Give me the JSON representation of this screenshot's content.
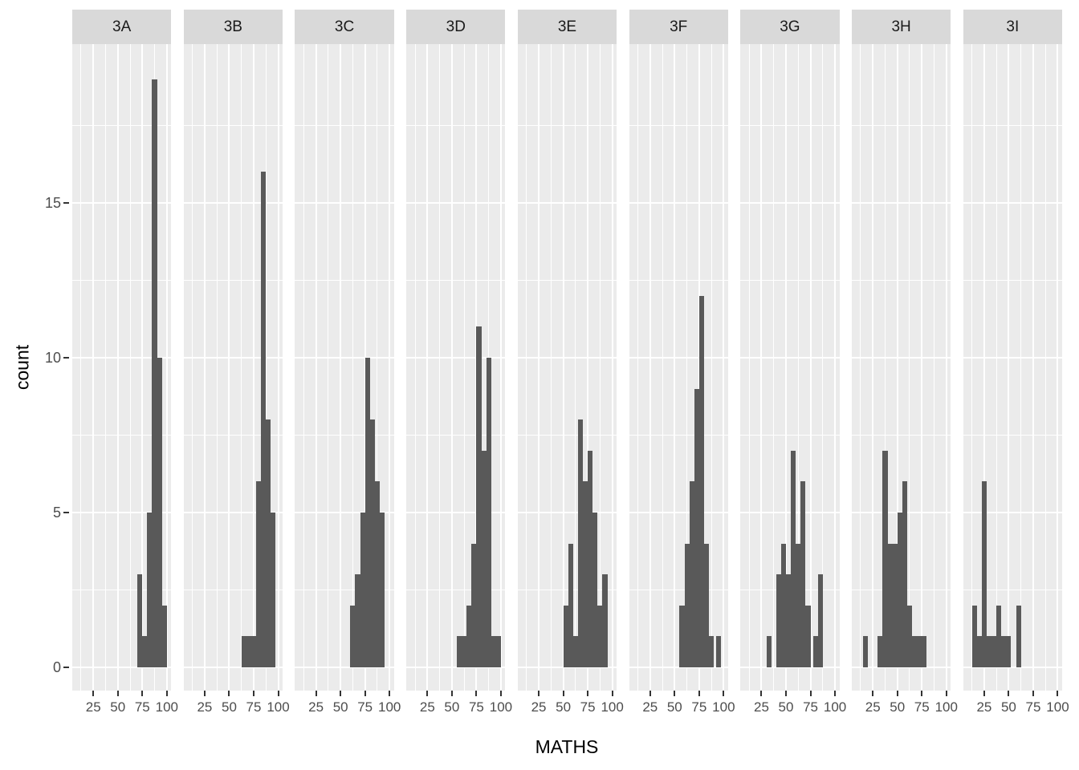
{
  "chart_data": {
    "type": "bar",
    "subtype": "faceted-histogram",
    "title": "",
    "xlabel": "MATHS",
    "ylabel": "count",
    "x_ticks": [
      25,
      50,
      75,
      100
    ],
    "y_ticks": [
      0,
      5,
      10,
      15
    ],
    "xlim": [
      3.5,
      104.5
    ],
    "ylim": [
      -1,
      20
    ],
    "binwidth": 5,
    "grid": "on",
    "legend": "none",
    "colors": {
      "bar_fill": "#595959",
      "panel_background": "#ebebeb",
      "strip_background": "#d9d9d9",
      "gridline": "#ffffff",
      "axis_text": "#4d4d4d",
      "axis_title": "#000000",
      "tick_mark": "#333333"
    },
    "facets": [
      {
        "label": "3A",
        "bins": [
          [
            70,
            75,
            3
          ],
          [
            75,
            80,
            1
          ],
          [
            80,
            85,
            5
          ],
          [
            85,
            90,
            19
          ],
          [
            90,
            95,
            10
          ],
          [
            95,
            100,
            2
          ]
        ]
      },
      {
        "label": "3B",
        "bins": [
          [
            62.5,
            67.5,
            1
          ],
          [
            67.5,
            72.5,
            1
          ],
          [
            72.5,
            77.5,
            1
          ],
          [
            77.5,
            82.5,
            6
          ],
          [
            82.5,
            87.5,
            16
          ],
          [
            87.5,
            92.5,
            8
          ],
          [
            92.5,
            97.5,
            5
          ]
        ]
      },
      {
        "label": "3C",
        "bins": [
          [
            60,
            65,
            2
          ],
          [
            65,
            70,
            3
          ],
          [
            70,
            75,
            5
          ],
          [
            75,
            80,
            10
          ],
          [
            80,
            85,
            8
          ],
          [
            85,
            90,
            6
          ],
          [
            90,
            95,
            5
          ]
        ]
      },
      {
        "label": "3D",
        "bins": [
          [
            55,
            60,
            1
          ],
          [
            60,
            65,
            1
          ],
          [
            65,
            70,
            2
          ],
          [
            70,
            75,
            4
          ],
          [
            75,
            80,
            11
          ],
          [
            80,
            85,
            7
          ],
          [
            85,
            90,
            10
          ],
          [
            90,
            95,
            1
          ],
          [
            95,
            100,
            1
          ]
        ]
      },
      {
        "label": "3E",
        "bins": [
          [
            50,
            55,
            2
          ],
          [
            55,
            60,
            4
          ],
          [
            60,
            65,
            1
          ],
          [
            65,
            70,
            8
          ],
          [
            70,
            75,
            6
          ],
          [
            75,
            80,
            7
          ],
          [
            80,
            85,
            5
          ],
          [
            85,
            90,
            2
          ],
          [
            90,
            95,
            3
          ]
        ]
      },
      {
        "label": "3F",
        "bins": [
          [
            55,
            60,
            2
          ],
          [
            60,
            65,
            4
          ],
          [
            65,
            70,
            6
          ],
          [
            70,
            75,
            9
          ],
          [
            75,
            80,
            12
          ],
          [
            80,
            85,
            4
          ],
          [
            85,
            90,
            1
          ],
          [
            92.5,
            97.5,
            1
          ]
        ]
      },
      {
        "label": "3G",
        "bins": [
          [
            30,
            35,
            1
          ],
          [
            40,
            45,
            3
          ],
          [
            45,
            50,
            4
          ],
          [
            50,
            55,
            3
          ],
          [
            55,
            60,
            7
          ],
          [
            60,
            65,
            4
          ],
          [
            65,
            70,
            6
          ],
          [
            70,
            75,
            2
          ],
          [
            77.5,
            82.5,
            1
          ],
          [
            82.5,
            87.5,
            3
          ]
        ]
      },
      {
        "label": "3H",
        "bins": [
          [
            15,
            20,
            1
          ],
          [
            30,
            35,
            1
          ],
          [
            35,
            40,
            7
          ],
          [
            40,
            45,
            4
          ],
          [
            45,
            50,
            4
          ],
          [
            50,
            55,
            5
          ],
          [
            55,
            60,
            6
          ],
          [
            60,
            65,
            2
          ],
          [
            65,
            70,
            1
          ],
          [
            70,
            75,
            1
          ],
          [
            75,
            80,
            1
          ]
        ]
      },
      {
        "label": "3I",
        "bins": [
          [
            12.5,
            17.5,
            2
          ],
          [
            17.5,
            22.5,
            1
          ],
          [
            22.5,
            27.5,
            6
          ],
          [
            27.5,
            32.5,
            1
          ],
          [
            32.5,
            37.5,
            1
          ],
          [
            37.5,
            42.5,
            2
          ],
          [
            42.5,
            47.5,
            1
          ],
          [
            47.5,
            52.5,
            1
          ],
          [
            57.5,
            62.5,
            2
          ]
        ]
      }
    ]
  }
}
